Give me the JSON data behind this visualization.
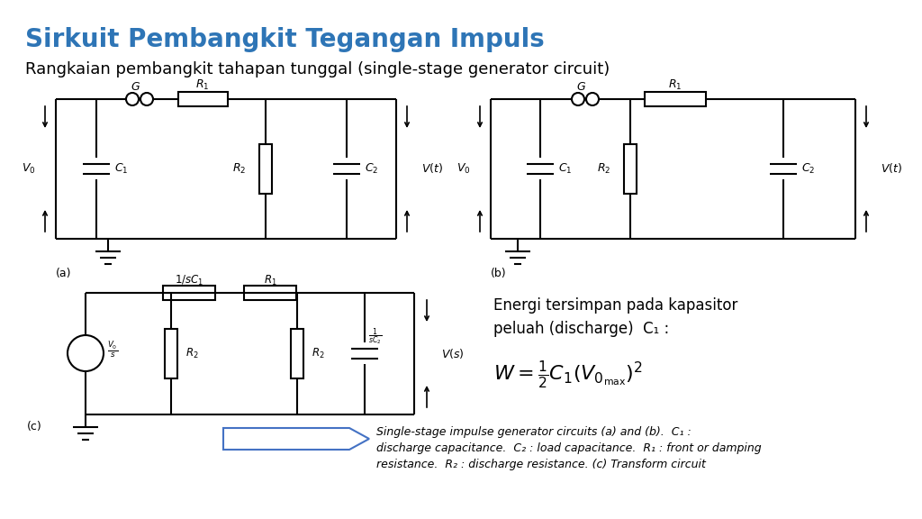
{
  "title": "Sirkuit Pembangkit Tegangan Impuls",
  "title_color": "#2E75B6",
  "subtitle": "Rangkaian pembangkit tahapan tunggal (single-stage generator circuit)",
  "bg_color": "#FFFFFF",
  "caption_line1": "Single-stage impulse generator circuits (a) and (b).  C₁ :",
  "caption_line2": "discharge capacitance.  C₂ : load capacitance.  R₁ : front or damping",
  "caption_line3": "resistance.  R₂ : discharge resistance. (c) Transform circuit",
  "energy_line1": "Energi tersimpan pada kapasitor",
  "energy_line2": "peluah (discharge)  C₁ :"
}
